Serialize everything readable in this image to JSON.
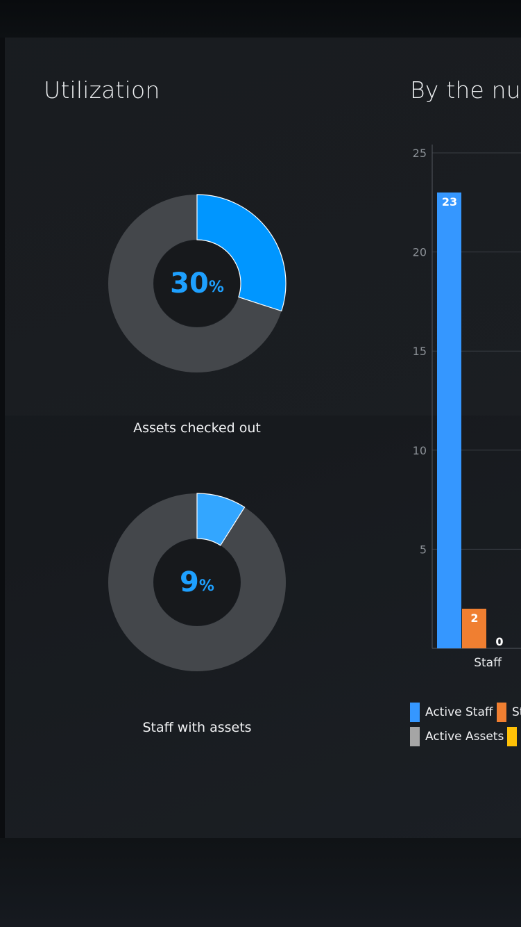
{
  "utilization": {
    "title": "Utilization",
    "donuts": [
      {
        "value": 30,
        "value_text": "30",
        "pct_sign": "%",
        "caption": "Assets checked out",
        "color": "#0096ff"
      },
      {
        "value": 9,
        "value_text": "9",
        "pct_sign": "%",
        "caption": "Staff with assets",
        "color": "#33a6ff"
      }
    ],
    "remainder_color": "#44474b",
    "hole_color": "#17191c"
  },
  "numbers": {
    "title": "By the num"
  },
  "chart_data": {
    "type": "bar",
    "title": "By the num",
    "categories": [
      "Staff"
    ],
    "series": [
      {
        "name": "Active Staff",
        "values": [
          23
        ],
        "color": "#3597ff"
      },
      {
        "name": "St",
        "values": [
          2
        ],
        "color": "#f07f31"
      },
      {
        "name": "Active Assets",
        "values": [
          0
        ],
        "color": "#a5a5a5"
      },
      {
        "name": "",
        "values": [
          null
        ],
        "color": "#ffc107"
      }
    ],
    "data_labels": [
      "23",
      "2",
      "0"
    ],
    "yticks": [
      5,
      10,
      15,
      20,
      25
    ],
    "ylim": [
      0,
      25.5
    ],
    "grid": true,
    "legend_position": "bottom"
  }
}
